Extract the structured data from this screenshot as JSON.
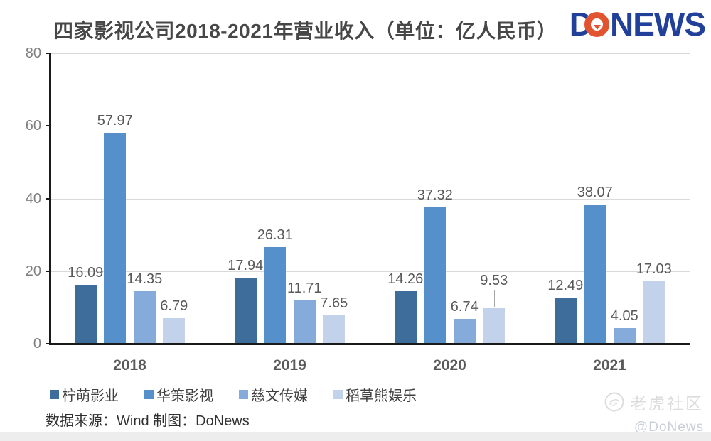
{
  "title": "四家影视公司2018-2021年营业收入（单位：亿人民币）",
  "logo": {
    "part_d": "D",
    "part_news": "NEWS",
    "blue": "#21409A",
    "orange": "#E25330"
  },
  "chart_data": {
    "type": "bar",
    "title": "四家影视公司2018-2021年营业收入（单位：亿人民币）",
    "unit": "亿人民币",
    "categories": [
      "2018",
      "2019",
      "2020",
      "2021"
    ],
    "series": [
      {
        "name": "柠萌影业",
        "color": "#3E6D9C",
        "values": [
          16.09,
          17.94,
          14.26,
          12.49
        ]
      },
      {
        "name": "华策影视",
        "color": "#5590CB",
        "values": [
          57.97,
          26.31,
          37.32,
          38.07
        ]
      },
      {
        "name": "慈文传媒",
        "color": "#84ABD9",
        "values": [
          14.35,
          11.71,
          6.74,
          4.05
        ]
      },
      {
        "name": "稻草熊娱乐",
        "color": "#C1D2EA",
        "values": [
          6.79,
          7.65,
          9.53,
          17.03
        ]
      }
    ],
    "ylim": [
      0,
      80
    ],
    "yticks": [
      0,
      20,
      40,
      60,
      80
    ],
    "grid": "horizontal",
    "data_labels": true,
    "legend_position": "bottom-left",
    "leader_lines": [
      {
        "category": "2020",
        "series": "稻草熊娱乐"
      }
    ],
    "colors": {
      "grid": "#D9D9D9",
      "axis": "#1a1a1a",
      "data_label": "#595959",
      "tick_label": "#7F7F7F",
      "category_label": "#595959"
    }
  },
  "source_line": "数据来源：Wind  制图：DoNews",
  "watermark": {
    "community": "老虎社区",
    "handle": "@DoNews"
  }
}
